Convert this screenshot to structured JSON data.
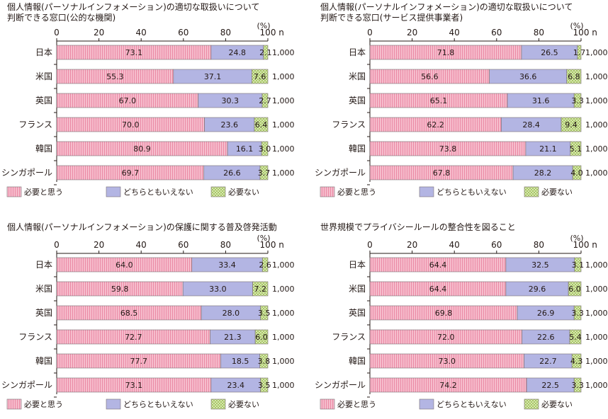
{
  "unit_label": "(%)",
  "n_label": "n",
  "legend": [
    "必要と思う",
    "どちらともいえない",
    "必要ない"
  ],
  "colors": {
    "agree": "#f2a6bd",
    "neutral": "#b3b5e3",
    "no": "#cfe3a0",
    "axis": "#231815"
  },
  "chart_data": [
    {
      "type": "bar",
      "stacked": true,
      "orientation": "horizontal",
      "title": "個人情報(パーソナルインフォメーション)の適切な取扱いについて\n判断できる窓口(公的な機関)",
      "xlim": [
        0,
        100
      ],
      "ticks": [
        0,
        20,
        40,
        60,
        80,
        100
      ],
      "categories": [
        "日本",
        "米国",
        "英国",
        "フランス",
        "韓国",
        "シンガポール"
      ],
      "n": [
        "1,000",
        "1,000",
        "1,000",
        "1,000",
        "1,000",
        "1,000"
      ],
      "series": [
        {
          "name": "必要と思う",
          "values": [
            73.1,
            55.3,
            67.0,
            70.0,
            80.9,
            69.7
          ]
        },
        {
          "name": "どちらともいえない",
          "values": [
            24.8,
            37.1,
            30.3,
            23.6,
            16.1,
            26.6
          ]
        },
        {
          "name": "必要ない",
          "values": [
            2.1,
            7.6,
            2.7,
            6.4,
            3.0,
            3.7
          ]
        }
      ],
      "labels": [
        [
          "73.1",
          "24.8",
          "2.1"
        ],
        [
          "55.3",
          "37.1",
          "7.6"
        ],
        [
          "67.0",
          "30.3",
          "2.7"
        ],
        [
          "70.0",
          "23.6",
          "6.4"
        ],
        [
          "80.9",
          "16.1",
          "3.0"
        ],
        [
          "69.7",
          "26.6",
          "3.7"
        ]
      ]
    },
    {
      "type": "bar",
      "stacked": true,
      "orientation": "horizontal",
      "title": "個人情報(パーソナルインフォメーション)の適切な取扱いについて\n判断できる窓口(サービス提供事業者)",
      "xlim": [
        0,
        100
      ],
      "ticks": [
        0,
        20,
        40,
        60,
        80,
        100
      ],
      "categories": [
        "日本",
        "米国",
        "英国",
        "フランス",
        "韓国",
        "シンガポール"
      ],
      "n": [
        "1,000",
        "1,000",
        "1,000",
        "1,000",
        "1,000",
        "1,000"
      ],
      "series": [
        {
          "name": "必要と思う",
          "values": [
            71.8,
            56.6,
            65.1,
            62.2,
            73.8,
            67.8
          ]
        },
        {
          "name": "どちらともいえない",
          "values": [
            26.5,
            36.6,
            31.6,
            28.4,
            21.1,
            28.2
          ]
        },
        {
          "name": "必要ない",
          "values": [
            1.7,
            6.8,
            3.3,
            9.4,
            5.1,
            4.0
          ]
        }
      ],
      "labels": [
        [
          "71.8",
          "26.5",
          "1.7"
        ],
        [
          "56.6",
          "36.6",
          "6.8"
        ],
        [
          "65.1",
          "31.6",
          "3.3"
        ],
        [
          "62.2",
          "28.4",
          "9.4"
        ],
        [
          "73.8",
          "21.1",
          "5.1"
        ],
        [
          "67.8",
          "28.2",
          "4.0"
        ]
      ]
    },
    {
      "type": "bar",
      "stacked": true,
      "orientation": "horizontal",
      "title": "個人情報(パーソナルインフォメーション)の保護に関する普及啓発活動",
      "xlim": [
        0,
        100
      ],
      "ticks": [
        0,
        20,
        40,
        60,
        80,
        100
      ],
      "categories": [
        "日本",
        "米国",
        "英国",
        "フランス",
        "韓国",
        "シンガポール"
      ],
      "n": [
        "1,000",
        "1,000",
        "1,000",
        "1,000",
        "1,000",
        "1,000"
      ],
      "series": [
        {
          "name": "必要と思う",
          "values": [
            64.0,
            59.8,
            68.5,
            72.7,
            77.7,
            73.1
          ]
        },
        {
          "name": "どちらともいえない",
          "values": [
            33.4,
            33.0,
            28.0,
            21.3,
            18.5,
            23.4
          ]
        },
        {
          "name": "必要ない",
          "values": [
            2.6,
            7.2,
            3.5,
            6.0,
            3.8,
            3.5
          ]
        }
      ],
      "labels": [
        [
          "64.0",
          "33.4",
          "2.6"
        ],
        [
          "59.8",
          "33.0",
          "7.2"
        ],
        [
          "68.5",
          "28.0",
          "3.5"
        ],
        [
          "72.7",
          "21.3",
          "6.0"
        ],
        [
          "77.7",
          "18.5",
          "3.8"
        ],
        [
          "73.1",
          "23.4",
          "3.5"
        ]
      ]
    },
    {
      "type": "bar",
      "stacked": true,
      "orientation": "horizontal",
      "title": "世界規模でプライバシールールの整合性を図ること",
      "xlim": [
        0,
        100
      ],
      "ticks": [
        0,
        20,
        40,
        60,
        80,
        100
      ],
      "categories": [
        "日本",
        "米国",
        "英国",
        "フランス",
        "韓国",
        "シンガポール"
      ],
      "n": [
        "1,000",
        "1,000",
        "1,000",
        "1,000",
        "1,000",
        "1,000"
      ],
      "series": [
        {
          "name": "必要と思う",
          "values": [
            64.4,
            64.4,
            69.8,
            72.0,
            73.0,
            74.2
          ]
        },
        {
          "name": "どちらともいえない",
          "values": [
            32.5,
            29.6,
            26.9,
            22.6,
            22.7,
            22.5
          ]
        },
        {
          "name": "必要ない",
          "values": [
            3.1,
            6.0,
            3.3,
            5.4,
            4.3,
            3.3
          ]
        }
      ],
      "labels": [
        [
          "64.4",
          "32.5",
          "3.1"
        ],
        [
          "64.4",
          "29.6",
          "6.0"
        ],
        [
          "69.8",
          "26.9",
          "3.3"
        ],
        [
          "72.0",
          "22.6",
          "5.4"
        ],
        [
          "73.0",
          "22.7",
          "4.3"
        ],
        [
          "74.2",
          "22.5",
          "3.3"
        ]
      ]
    }
  ]
}
